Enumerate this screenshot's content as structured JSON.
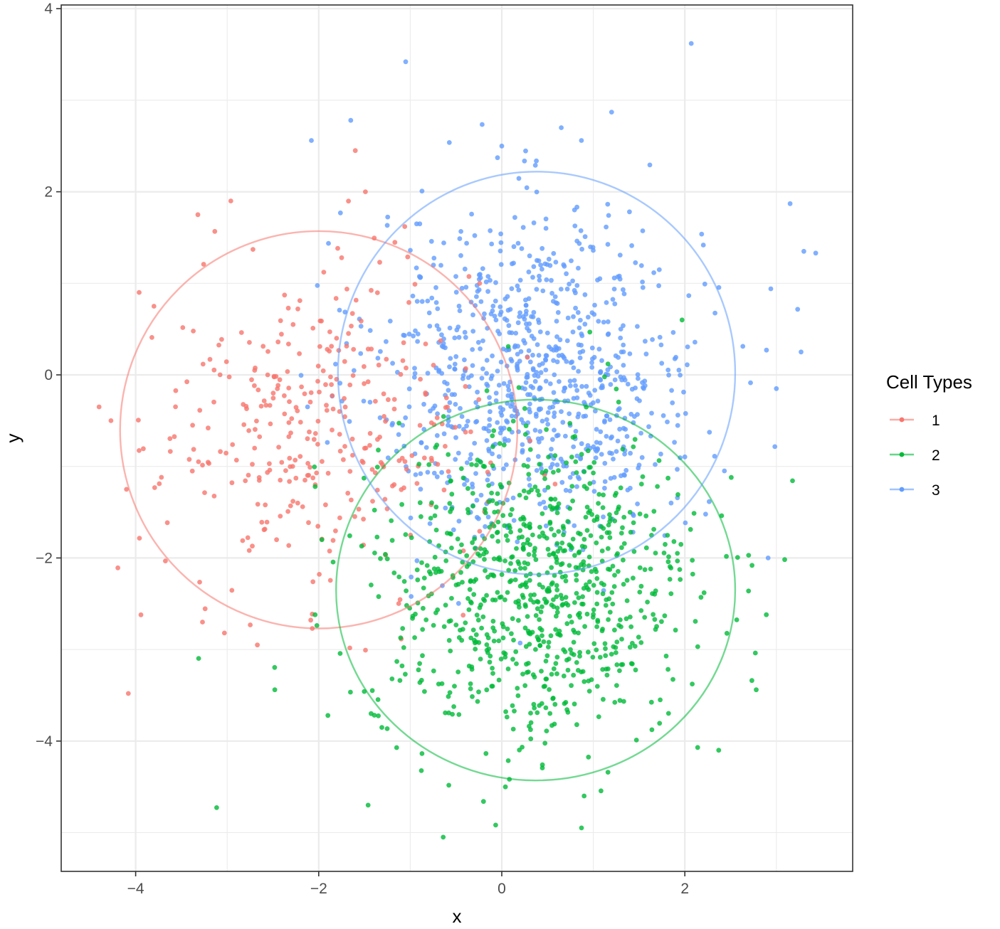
{
  "chart_data": {
    "type": "scatter",
    "title": "",
    "xlabel": "x",
    "ylabel": "y",
    "xlim": [
      -4.8,
      3.8
    ],
    "ylim": [
      -5.4,
      4.05
    ],
    "x_ticks": [
      -4,
      -2,
      0,
      2
    ],
    "y_ticks": [
      -4,
      -2,
      0,
      2,
      4
    ],
    "x_tick_labels": [
      "−4",
      "−2",
      "0",
      "2"
    ],
    "y_tick_labels": [
      "−4",
      "−2",
      "0",
      "2",
      "4"
    ],
    "grid": true,
    "theme": "bw",
    "legend": {
      "title": "Cell Types",
      "position": "right"
    },
    "series": [
      {
        "name": "1",
        "color": "#F8766D",
        "ellipse": {
          "center": [
            -2.0,
            -0.6
          ],
          "radius_x": 2.17,
          "radius_y": 2.17
        },
        "point_count": 330,
        "sample_points": [
          [
            -4.4,
            -0.35
          ],
          [
            -4.27,
            -0.5
          ],
          [
            -4.1,
            -1.25
          ],
          [
            -4.08,
            -3.48
          ],
          [
            -3.8,
            0.75
          ],
          [
            -3.32,
            1.75
          ],
          [
            -2.96,
            1.9
          ],
          [
            -3.27,
            -2.7
          ],
          [
            -3.03,
            -2.82
          ],
          [
            -2.67,
            -2.95
          ],
          [
            -2.07,
            -2.77
          ],
          [
            -1.6,
            2.45
          ],
          [
            -1.49,
            2.0
          ],
          [
            -1.06,
            1.62
          ],
          [
            -1.04,
            -1.03
          ],
          [
            -1.75,
            1.28
          ],
          [
            -2.28,
            0.55
          ],
          [
            -2.7,
            0.05
          ],
          [
            -2.46,
            -1.8
          ],
          [
            -2.15,
            -1.15
          ]
        ]
      },
      {
        "name": "2",
        "color": "#00BA38",
        "ellipse": {
          "center": [
            0.37,
            -2.35
          ],
          "radius_x": 2.18,
          "radius_y": 2.08
        },
        "point_count": 860,
        "sample_points": [
          [
            -0.64,
            -5.05
          ],
          [
            -1.46,
            -4.7
          ],
          [
            -0.2,
            -4.66
          ],
          [
            0.9,
            -4.6
          ],
          [
            0.04,
            -4.5
          ],
          [
            1.16,
            -4.34
          ],
          [
            2.37,
            -4.1
          ],
          [
            2.14,
            -4.07
          ],
          [
            -2.48,
            -3.44
          ],
          [
            -1.9,
            -3.72
          ],
          [
            2.78,
            -3.44
          ],
          [
            2.89,
            -2.62
          ],
          [
            1.97,
            0.6
          ],
          [
            1.16,
            0.12
          ],
          [
            -2.04,
            -2.62
          ],
          [
            0.6,
            -2.3
          ],
          [
            0.2,
            -1.7
          ],
          [
            0.75,
            -3.0
          ],
          [
            1.15,
            -3.28
          ],
          [
            -0.3,
            -2.9
          ]
        ]
      },
      {
        "name": "3",
        "color": "#619CFF",
        "ellipse": {
          "center": [
            0.38,
            0.02
          ],
          "radius_x": 2.17,
          "radius_y": 2.2
        },
        "point_count": 860,
        "sample_points": [
          [
            -1.05,
            3.42
          ],
          [
            2.07,
            3.62
          ],
          [
            -1.65,
            2.78
          ],
          [
            -2.08,
            2.56
          ],
          [
            1.2,
            2.87
          ],
          [
            0.65,
            2.7
          ],
          [
            3.15,
            1.87
          ],
          [
            3.3,
            1.35
          ],
          [
            3.43,
            1.33
          ],
          [
            3.27,
            0.25
          ],
          [
            3.0,
            -0.15
          ],
          [
            2.91,
            -2.0
          ],
          [
            -0.99,
            -2.42
          ],
          [
            0.0,
            2.5
          ],
          [
            0.87,
            2.56
          ],
          [
            0.4,
            0.6
          ],
          [
            0.9,
            -0.3
          ],
          [
            0.0,
            -0.6
          ],
          [
            1.3,
            0.5
          ],
          [
            -0.5,
            0.2
          ]
        ]
      }
    ]
  }
}
